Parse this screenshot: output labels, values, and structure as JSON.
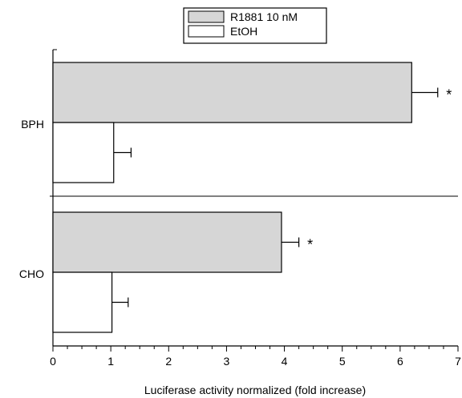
{
  "chart_data": {
    "type": "bar",
    "orientation": "horizontal",
    "categories": [
      "BPH",
      "CHO"
    ],
    "series": [
      {
        "name": "R1881 10 nM",
        "values": [
          6.2,
          3.95
        ],
        "errors": [
          0.45,
          0.3
        ],
        "color": "#d6d6d6",
        "significance": [
          "*",
          "*"
        ]
      },
      {
        "name": "EtOH",
        "values": [
          1.05,
          1.02
        ],
        "errors": [
          0.3,
          0.28
        ],
        "color": "#ffffff",
        "significance": [
          "",
          ""
        ]
      }
    ],
    "xlabel": "Luciferase activity normalized (fold increase)",
    "ylabel": "",
    "xlim": [
      0,
      7
    ],
    "x_ticks": [
      0,
      1,
      2,
      3,
      4,
      5,
      6,
      7
    ],
    "minor_tick_step": 0.25,
    "separator_between_categories": true,
    "legend_position": "top-center",
    "grid": false
  }
}
